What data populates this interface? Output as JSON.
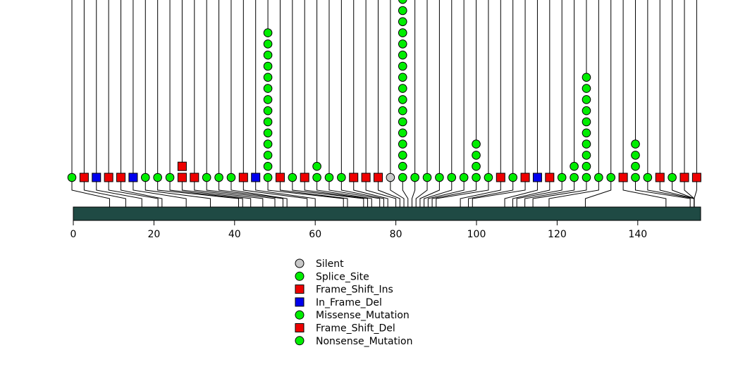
{
  "chart_data": {
    "type": "lollipop",
    "title": "",
    "xlabel": "",
    "ylabel": "",
    "xlim": [
      0,
      156
    ],
    "x_ticks": [
      0,
      20,
      40,
      60,
      80,
      100,
      120,
      140
    ],
    "x_tick_labels": [
      "0",
      "20",
      "40",
      "60",
      "80",
      "100",
      "120",
      "140"
    ],
    "protein_bar_color": "#1f4a44",
    "legend": [
      {
        "label": "Silent",
        "shape": "circle",
        "color": "#c8c8c8"
      },
      {
        "label": "Splice_Site",
        "shape": "circle",
        "color": "#00ee00"
      },
      {
        "label": "Frame_Shift_Ins",
        "shape": "square",
        "color": "#ee0000"
      },
      {
        "label": "In_Frame_Del",
        "shape": "square",
        "color": "#0000ee"
      },
      {
        "label": "Missense_Mutation",
        "shape": "circle",
        "color": "#00ee00"
      },
      {
        "label": "Frame_Shift_Del",
        "shape": "square",
        "color": "#ee0000"
      },
      {
        "label": "Nonsense_Mutation",
        "shape": "circle",
        "color": "#00ee00"
      }
    ],
    "mutations": [
      {
        "position": 0,
        "count": 1,
        "shape": "circle",
        "color": "#00ee00"
      },
      {
        "position": 3,
        "count": 1,
        "shape": "square",
        "color": "#ee0000"
      },
      {
        "position": 6,
        "count": 1,
        "shape": "square",
        "color": "#0000ee"
      },
      {
        "position": 9,
        "count": 1,
        "shape": "square",
        "color": "#ee0000"
      },
      {
        "position": 12,
        "count": 1,
        "shape": "square",
        "color": "#ee0000"
      },
      {
        "position": 15,
        "count": 1,
        "shape": "square",
        "color": "#0000ee"
      },
      {
        "position": 18,
        "count": 1,
        "shape": "circle",
        "color": "#00ee00"
      },
      {
        "position": 21,
        "count": 1,
        "shape": "circle",
        "color": "#00ee00"
      },
      {
        "position": 24,
        "count": 1,
        "shape": "circle",
        "color": "#00ee00"
      },
      {
        "position": 27,
        "count": 2,
        "shape": "square",
        "color": "#ee0000"
      },
      {
        "position": 30,
        "count": 1,
        "shape": "square",
        "color": "#ee0000"
      },
      {
        "position": 33,
        "count": 1,
        "shape": "circle",
        "color": "#00ee00"
      },
      {
        "position": 36,
        "count": 1,
        "shape": "circle",
        "color": "#00ee00"
      },
      {
        "position": 39,
        "count": 1,
        "shape": "circle",
        "color": "#00ee00"
      },
      {
        "position": 42,
        "count": 1,
        "shape": "square",
        "color": "#ee0000"
      },
      {
        "position": 45,
        "count": 1,
        "shape": "square",
        "color": "#0000ee"
      },
      {
        "position": 48,
        "count": 14,
        "shape": "circle",
        "color": "#00ee00"
      },
      {
        "position": 51,
        "count": 1,
        "shape": "square",
        "color": "#ee0000"
      },
      {
        "position": 54,
        "count": 1,
        "shape": "circle",
        "color": "#00ee00"
      },
      {
        "position": 57,
        "count": 1,
        "shape": "square",
        "color": "#ee0000"
      },
      {
        "position": 60,
        "count": 2,
        "shape": "circle",
        "color": "#00ee00"
      },
      {
        "position": 63,
        "count": 1,
        "shape": "circle",
        "color": "#00ee00"
      },
      {
        "position": 66,
        "count": 1,
        "shape": "circle",
        "color": "#00ee00"
      },
      {
        "position": 69,
        "count": 1,
        "shape": "square",
        "color": "#ee0000"
      },
      {
        "position": 72,
        "count": 1,
        "shape": "square",
        "color": "#ee0000"
      },
      {
        "position": 75,
        "count": 1,
        "shape": "square",
        "color": "#ee0000"
      },
      {
        "position": 78,
        "count": 1,
        "shape": "circle",
        "color": "#c8c8c8"
      },
      {
        "position": 81,
        "count": 17,
        "shape": "circle",
        "color": "#00ee00"
      },
      {
        "position": 84,
        "count": 1,
        "shape": "circle",
        "color": "#00ee00"
      },
      {
        "position": 87,
        "count": 1,
        "shape": "circle",
        "color": "#00ee00"
      },
      {
        "position": 90,
        "count": 1,
        "shape": "circle",
        "color": "#00ee00"
      },
      {
        "position": 93,
        "count": 1,
        "shape": "circle",
        "color": "#00ee00"
      },
      {
        "position": 96,
        "count": 1,
        "shape": "circle",
        "color": "#00ee00"
      },
      {
        "position": 99,
        "count": 4,
        "shape": "circle",
        "color": "#00ee00"
      },
      {
        "position": 102,
        "count": 1,
        "shape": "circle",
        "color": "#00ee00"
      },
      {
        "position": 105,
        "count": 1,
        "shape": "square",
        "color": "#ee0000"
      },
      {
        "position": 108,
        "count": 1,
        "shape": "circle",
        "color": "#00ee00"
      },
      {
        "position": 111,
        "count": 1,
        "shape": "square",
        "color": "#ee0000"
      },
      {
        "position": 114,
        "count": 1,
        "shape": "square",
        "color": "#0000ee"
      },
      {
        "position": 117,
        "count": 1,
        "shape": "square",
        "color": "#ee0000"
      },
      {
        "position": 120,
        "count": 1,
        "shape": "circle",
        "color": "#00ee00"
      },
      {
        "position": 123,
        "count": 2,
        "shape": "circle",
        "color": "#00ee00"
      },
      {
        "position": 126,
        "count": 10,
        "shape": "circle",
        "color": "#00ee00"
      },
      {
        "position": 129,
        "count": 1,
        "shape": "circle",
        "color": "#00ee00"
      },
      {
        "position": 132,
        "count": 1,
        "shape": "circle",
        "color": "#00ee00"
      },
      {
        "position": 135,
        "count": 1,
        "shape": "square",
        "color": "#ee0000"
      },
      {
        "position": 138,
        "count": 4,
        "shape": "circle",
        "color": "#00ee00"
      },
      {
        "position": 141,
        "count": 1,
        "shape": "circle",
        "color": "#00ee00"
      },
      {
        "position": 144,
        "count": 1,
        "shape": "square",
        "color": "#ee0000"
      },
      {
        "position": 147,
        "count": 1,
        "shape": "circle",
        "color": "#00ee00"
      },
      {
        "position": 150,
        "count": 1,
        "shape": "square",
        "color": "#ee0000"
      },
      {
        "position": 153,
        "count": 1,
        "shape": "square",
        "color": "#ee0000"
      }
    ],
    "protein_positions": [
      9,
      13,
      17,
      21,
      22,
      28,
      34,
      41,
      42,
      44,
      47,
      50,
      52,
      53,
      58,
      60,
      67,
      68,
      72,
      73,
      74,
      76,
      77,
      78,
      80,
      81,
      82,
      83,
      84,
      85,
      86,
      87,
      88,
      89,
      90,
      96,
      98,
      99,
      107,
      109,
      110,
      112,
      114,
      118,
      127,
      147,
      153,
      154
    ]
  }
}
